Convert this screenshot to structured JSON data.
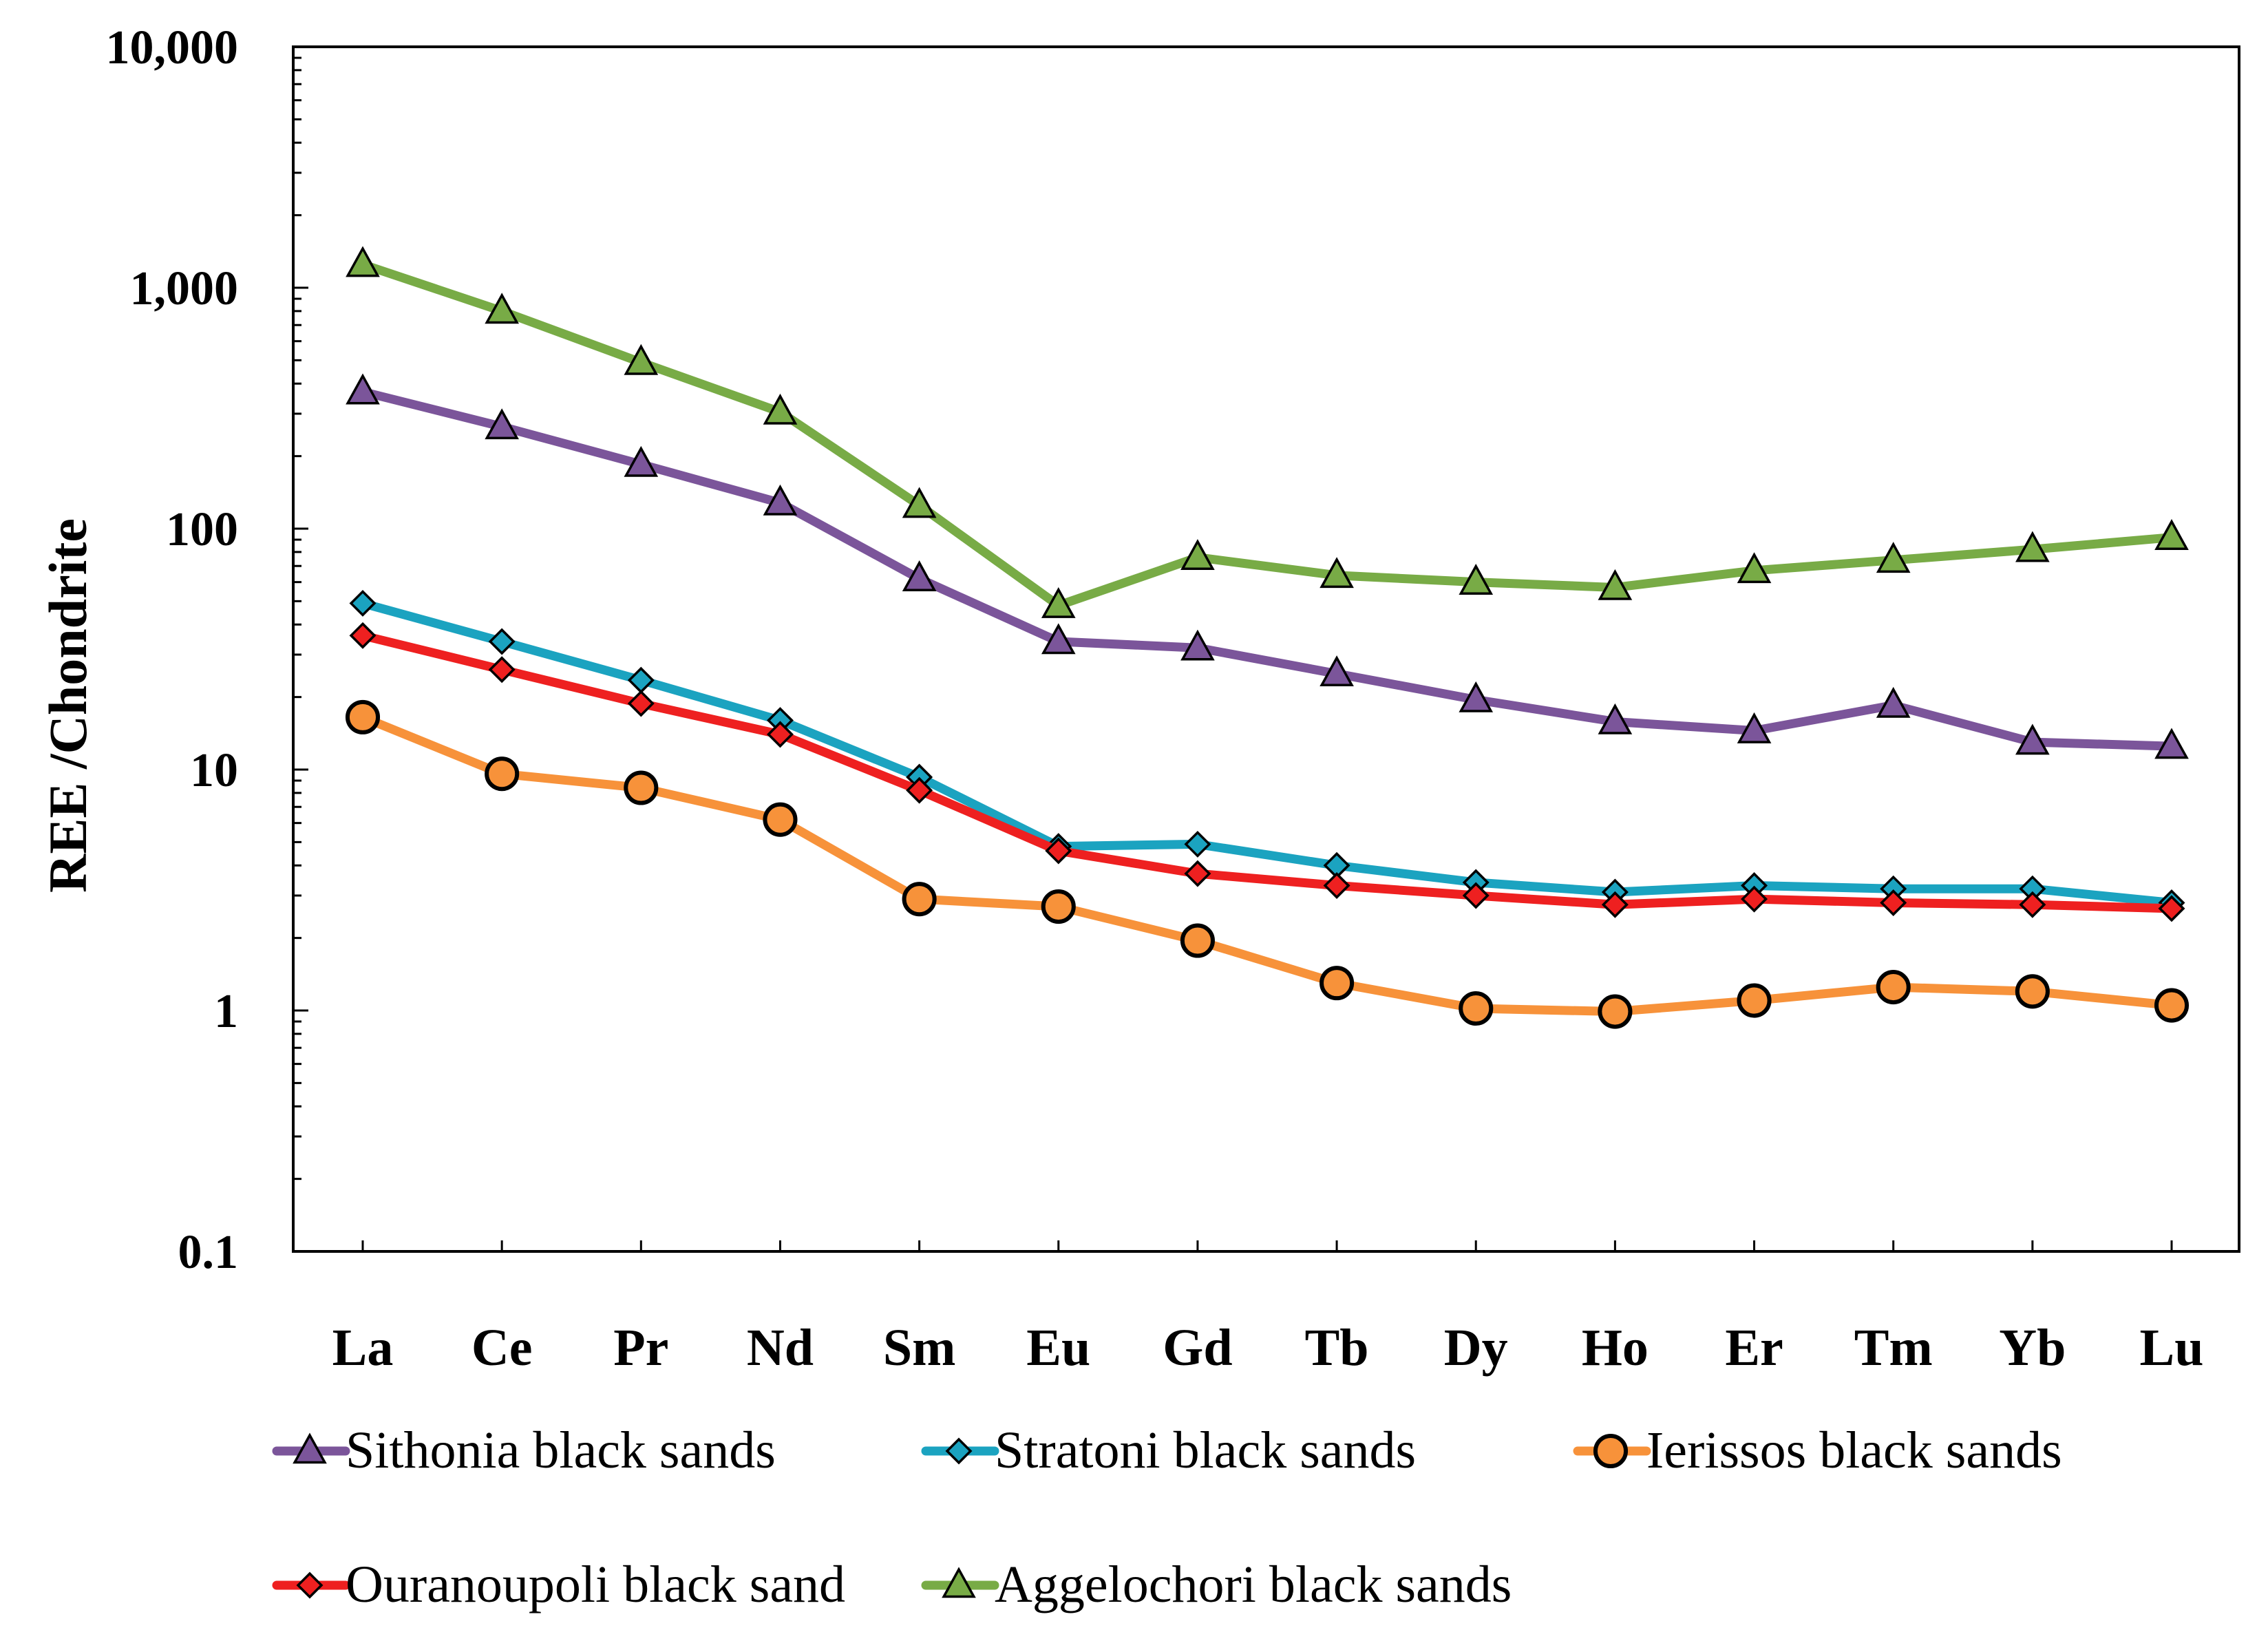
{
  "chart_data": {
    "type": "line",
    "title": "",
    "xlabel": "",
    "ylabel": "REE /Chondrite",
    "yscale": "log",
    "ylim": [
      0.1,
      10000
    ],
    "yticks": [
      0.1,
      1,
      10,
      100,
      1000,
      10000
    ],
    "ytick_labels": [
      "0.1",
      "1",
      "10",
      "100",
      "1,000",
      "10,000"
    ],
    "categories": [
      "La",
      "Ce",
      "Pr",
      "Nd",
      "Sm",
      "Eu",
      "Gd",
      "Tb",
      "Dy",
      "Ho",
      "Er",
      "Tm",
      "Yb",
      "Lu"
    ],
    "legend_position": "bottom",
    "series": [
      {
        "name": "Sithonia black sands",
        "color": "#7b559a",
        "marker": "triangle",
        "marker_color": "#7b559a",
        "values": [
          370,
          265,
          185,
          128,
          62,
          34,
          32,
          25,
          19.5,
          15.8,
          14.5,
          18.5,
          13,
          12.5
        ]
      },
      {
        "name": "Stratoni black sands",
        "color": "#1ba3c0",
        "marker": "diamond",
        "marker_color": "#1ba3c0",
        "values": [
          49,
          34,
          23.5,
          16,
          9.3,
          4.8,
          4.9,
          4,
          3.4,
          3.1,
          3.3,
          3.2,
          3.2,
          2.8
        ]
      },
      {
        "name": "Ierissos black sands",
        "color": "#f7923a",
        "marker": "circle",
        "marker_color": "#f7923a",
        "values": [
          16.5,
          9.6,
          8.4,
          6.2,
          2.9,
          2.7,
          1.95,
          1.3,
          1.02,
          0.99,
          1.1,
          1.25,
          1.2,
          1.05
        ]
      },
      {
        "name": "Ouranoupoli black sand",
        "color": "#ee2020",
        "marker": "diamond",
        "marker_color": "#ee2020",
        "values": [
          36,
          26,
          18.8,
          14,
          8.2,
          4.6,
          3.7,
          3.3,
          3,
          2.75,
          2.9,
          2.8,
          2.75,
          2.65
        ]
      },
      {
        "name": "Aggelochori black sands",
        "color": "#78ab46",
        "marker": "triangle",
        "marker_color": "#78ab46",
        "values": [
          1250,
          800,
          490,
          305,
          125,
          48,
          76,
          64,
          60,
          57,
          67,
          74,
          82,
          92
        ]
      }
    ]
  }
}
